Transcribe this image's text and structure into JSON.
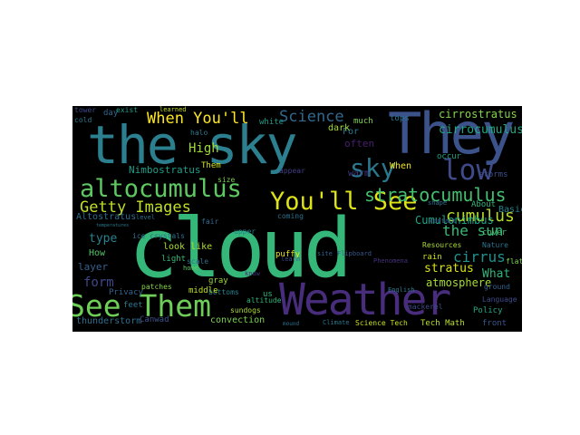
{
  "word_cloud": {
    "words": [
      {
        "id": "cloud",
        "text": "cloud",
        "color": "#35b779"
      },
      {
        "id": "the_sky",
        "text": "the sky",
        "color": "#2c7f8e"
      },
      {
        "id": "they",
        "text": "They",
        "color": "#3b528b"
      },
      {
        "id": "weather",
        "text": "Weather",
        "color": "#472d7b"
      },
      {
        "id": "altocumulus",
        "text": "altocumulus",
        "color": "#5ec962"
      },
      {
        "id": "see_them",
        "text": "See Them",
        "color": "#6ece58"
      },
      {
        "id": "youll_see",
        "text": "You'll See",
        "color": "#dde318"
      },
      {
        "id": "low",
        "text": "low",
        "color": "#3e4a89"
      },
      {
        "id": "sky",
        "text": "sky",
        "color": "#2a788e"
      },
      {
        "id": "stratocumulus",
        "text": "stratocumulus",
        "color": "#44bf70"
      },
      {
        "id": "when_youll",
        "text": "When You'll",
        "color": "#fde725"
      },
      {
        "id": "getty_images",
        "text": "Getty Images",
        "color": "#c2df23"
      },
      {
        "id": "science",
        "text": "Science",
        "color": "#31688e"
      },
      {
        "id": "cumulus",
        "text": "cumulus",
        "color": "#b5de2b"
      },
      {
        "id": "the_sun",
        "text": "the sun",
        "color": "#3aba76"
      },
      {
        "id": "cirrus",
        "text": "cirrus",
        "color": "#21918c"
      },
      {
        "id": "cirrocumulus",
        "text": "cirrocumulus",
        "color": "#22a884"
      },
      {
        "id": "cirrostratus",
        "text": "cirrostratus",
        "color": "#84d44b"
      },
      {
        "id": "high",
        "text": "High",
        "color": "#9fda3a"
      },
      {
        "id": "stratus",
        "text": "stratus",
        "color": "#d8e219"
      },
      {
        "id": "atmosphere",
        "text": "atmosphere",
        "color": "#a5db36"
      },
      {
        "id": "what",
        "text": "What",
        "color": "#2fb47c"
      },
      {
        "id": "cumulonimbus",
        "text": "Cumulonimbus",
        "color": "#20a486"
      },
      {
        "id": "nimbostratus",
        "text": "Nimbostratus",
        "color": "#1f9e89"
      },
      {
        "id": "altostratus",
        "text": "Altostratus",
        "color": "#2e6e8e"
      },
      {
        "id": "type",
        "text": "type",
        "color": "#26828e"
      },
      {
        "id": "form",
        "text": "form",
        "color": "#3f4889"
      },
      {
        "id": "layer",
        "text": "layer",
        "color": "#35608d"
      },
      {
        "id": "how",
        "text": "How",
        "color": "#52c569"
      },
      {
        "id": "look_like",
        "text": "look like",
        "color": "#addc30"
      },
      {
        "id": "thunderstorm",
        "text": "thunderstorm",
        "color": "#2d708e"
      },
      {
        "id": "convection",
        "text": "convection",
        "color": "#7ad151"
      },
      {
        "id": "science_tech",
        "text": "Science Tech",
        "color": "#c8e020"
      },
      {
        "id": "tech_math",
        "text": "Tech Math",
        "color": "#bddf26"
      },
      {
        "id": "front",
        "text": "front",
        "color": "#39568c"
      },
      {
        "id": "policy",
        "text": "Policy",
        "color": "#22a785"
      },
      {
        "id": "rain",
        "text": "rain",
        "color": "#d0e11c"
      },
      {
        "id": "resources",
        "text": "Resources",
        "color": "#a8db34"
      },
      {
        "id": "warm",
        "text": "warm",
        "color": "#433e85"
      },
      {
        "id": "often",
        "text": "often",
        "color": "#481f70"
      },
      {
        "id": "when",
        "text": "When",
        "color": "#f1e51d"
      },
      {
        "id": "for",
        "text": "For",
        "color": "#29798e"
      },
      {
        "id": "dark",
        "text": "dark",
        "color": "#a2da37"
      },
      {
        "id": "much",
        "text": "much",
        "color": "#7fd34e"
      },
      {
        "id": "tops",
        "text": "tops",
        "color": "#2a768e"
      },
      {
        "id": "occur",
        "text": "occur",
        "color": "#1fa088"
      },
      {
        "id": "storms",
        "text": "storms",
        "color": "#3d4e8a"
      },
      {
        "id": "cover",
        "text": "cover",
        "color": "#44bf70"
      },
      {
        "id": "basic",
        "text": "Basic",
        "color": "#25848e"
      },
      {
        "id": "about",
        "text": "About",
        "color": "#32b67a"
      },
      {
        "id": "nature",
        "text": "Nature",
        "color": "#2b758e"
      },
      {
        "id": "flat",
        "text": "flat",
        "color": "#7fd34e"
      },
      {
        "id": "language",
        "text": "Language",
        "color": "#3e4c8a"
      },
      {
        "id": "climate",
        "text": "Climate",
        "color": "#2a778e"
      },
      {
        "id": "puffy",
        "text": "puffy",
        "color": "#f1e51d"
      },
      {
        "id": "light",
        "text": "light",
        "color": "#35b779"
      },
      {
        "id": "scale",
        "text": "scale",
        "color": "#2f6c8e"
      },
      {
        "id": "gray",
        "text": "gray",
        "color": "#9bd93c"
      },
      {
        "id": "bottoms",
        "text": "bottoms",
        "color": "#26828e"
      },
      {
        "id": "middle",
        "text": "middle",
        "color": "#c5e021"
      },
      {
        "id": "sundogs",
        "text": "sundogs",
        "color": "#addc30"
      },
      {
        "id": "altitude",
        "text": "altitude",
        "color": "#2fb47c"
      },
      {
        "id": "patches",
        "text": "patches",
        "color": "#84d44b"
      },
      {
        "id": "privacy",
        "text": "Privacy",
        "color": "#33628d"
      },
      {
        "id": "canwad",
        "text": "Canwad",
        "color": "#3b528b"
      },
      {
        "id": "feet",
        "text": "feet",
        "color": "#2a788e"
      },
      {
        "id": "ice_crystals",
        "text": "ice crystals",
        "color": "#2c728e"
      },
      {
        "id": "day",
        "text": "day",
        "color": "#31688e"
      },
      {
        "id": "white",
        "text": "white",
        "color": "#1e9b8a"
      },
      {
        "id": "halo",
        "text": "halo",
        "color": "#2a788e"
      },
      {
        "id": "them",
        "text": "Them",
        "color": "#d5e21a"
      },
      {
        "id": "coming",
        "text": "coming",
        "color": "#2c728e"
      },
      {
        "id": "appear",
        "text": "appear",
        "color": "#433e85"
      },
      {
        "id": "size",
        "text": "size",
        "color": "#7ad151"
      },
      {
        "id": "level",
        "text": "level",
        "color": "#2d708e"
      },
      {
        "id": "fair",
        "text": "fair",
        "color": "#31688e"
      },
      {
        "id": "upper",
        "text": "upper",
        "color": "#25848e"
      },
      {
        "id": "learn",
        "text": "learn",
        "color": "#3e4a89"
      },
      {
        "id": "know",
        "text": "know",
        "color": "#46327e"
      },
      {
        "id": "us",
        "text": "us",
        "color": "#2fb47c"
      },
      {
        "id": "home",
        "text": "home",
        "color": "#5ec962"
      },
      {
        "id": "flipboard",
        "text": "Flipboard",
        "color": "#38588c"
      },
      {
        "id": "cold",
        "text": "cold",
        "color": "#2a788e"
      },
      {
        "id": "tower",
        "text": "tower",
        "color": "#3e4a89"
      },
      {
        "id": "learned",
        "text": "learned",
        "color": "#c2df23"
      },
      {
        "id": "exist",
        "text": "exist",
        "color": "#1f9e89"
      },
      {
        "id": "ground",
        "text": "ground",
        "color": "#35608d"
      },
      {
        "id": "contact",
        "text": "contact",
        "color": "#3b528b"
      },
      {
        "id": "shape",
        "text": "shape",
        "color": "#2c728e"
      },
      {
        "id": "english",
        "text": "English",
        "color": "#2a788e"
      },
      {
        "id": "site",
        "text": "site",
        "color": "#33638d"
      },
      {
        "id": "mackerel",
        "text": "mackerel",
        "color": "#3e4a89"
      },
      {
        "id": "phenomena",
        "text": "Phenomena",
        "color": "#46327e"
      },
      {
        "id": "mound",
        "text": "mound",
        "color": "#2c728e"
      },
      {
        "id": "temperatures",
        "text": "temperatures",
        "color": "#2a788e"
      }
    ]
  }
}
